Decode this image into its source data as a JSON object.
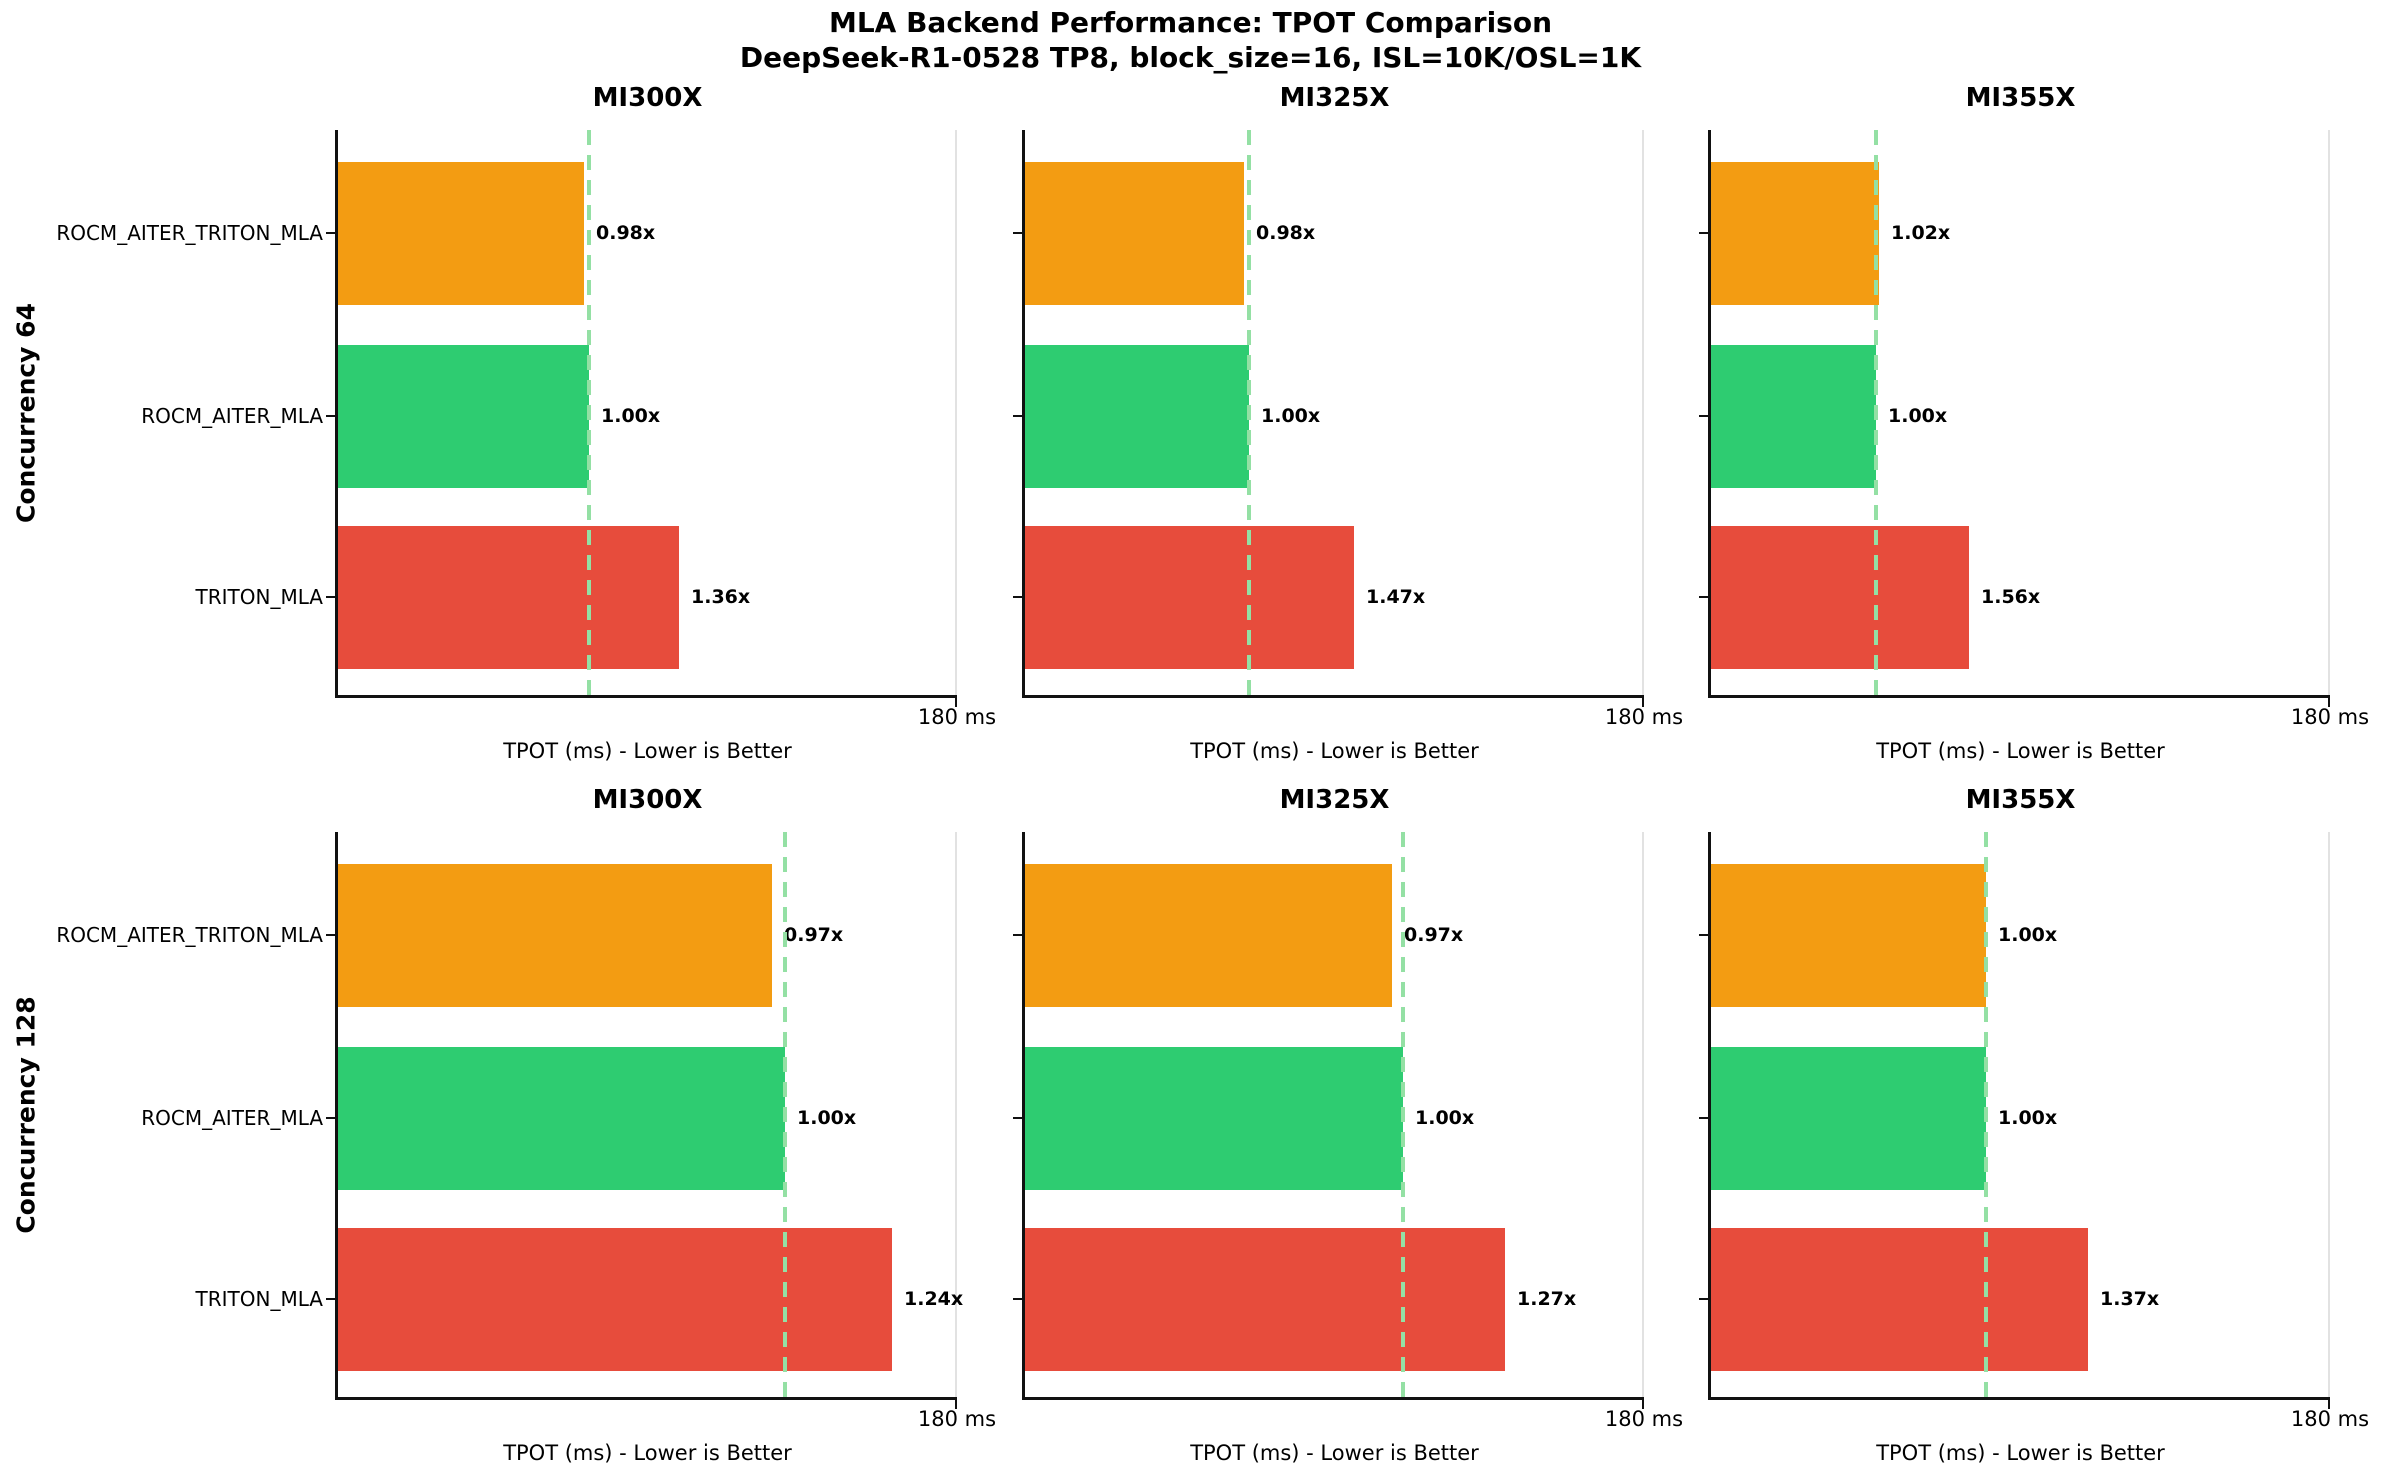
{
  "title": {
    "line1": "MLA Backend Performance: TPOT Comparison",
    "line2": "DeepSeek-R1-0528 TP8, block_size=16, ISL=10K/OSL=1K"
  },
  "backends": [
    "ROCM_AITER_TRITON_MLA",
    "ROCM_AITER_MLA",
    "TRITON_MLA"
  ],
  "axis": {
    "max_ms": 180,
    "tick_label": "180 ms",
    "xlabel": "TPOT (ms) - Lower is Better"
  },
  "colors": {
    "bars": [
      "#F39C12",
      "#2ECC71",
      "#E74C3C"
    ],
    "reference_line": "#94E0A4",
    "spine": "#111111"
  },
  "rows": [
    {
      "label": "Concurrency 64",
      "panels": [
        {
          "title": "MI300X",
          "baseline_ms_est": 73,
          "speedups": [
            0.98,
            1.0,
            1.36
          ],
          "labels": [
            "0.98x",
            "1.00x",
            "1.36x"
          ]
        },
        {
          "title": "MI325X",
          "baseline_ms_est": 65,
          "speedups": [
            0.98,
            1.0,
            1.47
          ],
          "labels": [
            "0.98x",
            "1.00x",
            "1.47x"
          ]
        },
        {
          "title": "MI355X",
          "baseline_ms_est": 48,
          "speedups": [
            1.02,
            1.0,
            1.56
          ],
          "labels": [
            "1.02x",
            "1.00x",
            "1.56x"
          ]
        }
      ]
    },
    {
      "label": "Concurrency 128",
      "panels": [
        {
          "title": "MI300X",
          "baseline_ms_est": 130,
          "speedups": [
            0.97,
            1.0,
            1.24
          ],
          "labels": [
            "0.97x",
            "1.00x",
            "1.24x"
          ]
        },
        {
          "title": "MI325X",
          "baseline_ms_est": 110,
          "speedups": [
            0.97,
            1.0,
            1.27
          ],
          "labels": [
            "0.97x",
            "1.00x",
            "1.27x"
          ]
        },
        {
          "title": "MI355X",
          "baseline_ms_est": 80,
          "speedups": [
            1.0,
            1.0,
            1.37
          ],
          "labels": [
            "1.00x",
            "1.00x",
            "1.37x"
          ]
        }
      ]
    }
  ],
  "chart_data": [
    {
      "type": "bar",
      "orientation": "horizontal",
      "title": "MI300X",
      "group": "Concurrency 64",
      "categories": [
        "ROCM_AITER_TRITON_MLA",
        "ROCM_AITER_MLA",
        "TRITON_MLA"
      ],
      "values_ms_est": [
        71.5,
        73.0,
        99.3
      ],
      "bar_labels": [
        "0.98x",
        "1.00x",
        "1.36x"
      ],
      "reference_line_ms_est": 73,
      "xlabel": "TPOT (ms) - Lower is Better",
      "xlim": [
        0,
        180
      ],
      "x_tick_labels": [
        "180 ms"
      ],
      "grid": false,
      "legend": "none",
      "bar_colors": [
        "#F39C12",
        "#2ECC71",
        "#E74C3C"
      ]
    },
    {
      "type": "bar",
      "orientation": "horizontal",
      "title": "MI325X",
      "group": "Concurrency 64",
      "categories": [
        "ROCM_AITER_TRITON_MLA",
        "ROCM_AITER_MLA",
        "TRITON_MLA"
      ],
      "values_ms_est": [
        63.7,
        65.0,
        95.6
      ],
      "bar_labels": [
        "0.98x",
        "1.00x",
        "1.47x"
      ],
      "reference_line_ms_est": 65,
      "xlabel": "TPOT (ms) - Lower is Better",
      "xlim": [
        0,
        180
      ],
      "x_tick_labels": [
        "180 ms"
      ],
      "grid": false,
      "legend": "none",
      "bar_colors": [
        "#F39C12",
        "#2ECC71",
        "#E74C3C"
      ]
    },
    {
      "type": "bar",
      "orientation": "horizontal",
      "title": "MI355X",
      "group": "Concurrency 64",
      "categories": [
        "ROCM_AITER_TRITON_MLA",
        "ROCM_AITER_MLA",
        "TRITON_MLA"
      ],
      "values_ms_est": [
        49.0,
        48.0,
        74.9
      ],
      "bar_labels": [
        "1.02x",
        "1.00x",
        "1.56x"
      ],
      "reference_line_ms_est": 48,
      "xlabel": "TPOT (ms) - Lower is Better",
      "xlim": [
        0,
        180
      ],
      "x_tick_labels": [
        "180 ms"
      ],
      "grid": false,
      "legend": "none",
      "bar_colors": [
        "#F39C12",
        "#2ECC71",
        "#E74C3C"
      ]
    },
    {
      "type": "bar",
      "orientation": "horizontal",
      "title": "MI300X",
      "group": "Concurrency 128",
      "categories": [
        "ROCM_AITER_TRITON_MLA",
        "ROCM_AITER_MLA",
        "TRITON_MLA"
      ],
      "values_ms_est": [
        126.1,
        130.0,
        161.2
      ],
      "bar_labels": [
        "0.97x",
        "1.00x",
        "1.24x"
      ],
      "reference_line_ms_est": 130,
      "xlabel": "TPOT (ms) - Lower is Better",
      "xlim": [
        0,
        180
      ],
      "x_tick_labels": [
        "180 ms"
      ],
      "grid": false,
      "legend": "none",
      "bar_colors": [
        "#F39C12",
        "#2ECC71",
        "#E74C3C"
      ]
    },
    {
      "type": "bar",
      "orientation": "horizontal",
      "title": "MI325X",
      "group": "Concurrency 128",
      "categories": [
        "ROCM_AITER_TRITON_MLA",
        "ROCM_AITER_MLA",
        "TRITON_MLA"
      ],
      "values_ms_est": [
        106.7,
        110.0,
        139.7
      ],
      "bar_labels": [
        "0.97x",
        "1.00x",
        "1.27x"
      ],
      "reference_line_ms_est": 110,
      "xlabel": "TPOT (ms) - Lower is Better",
      "xlim": [
        0,
        180
      ],
      "x_tick_labels": [
        "180 ms"
      ],
      "grid": false,
      "legend": "none",
      "bar_colors": [
        "#F39C12",
        "#2ECC71",
        "#E74C3C"
      ]
    },
    {
      "type": "bar",
      "orientation": "horizontal",
      "title": "MI355X",
      "group": "Concurrency 128",
      "categories": [
        "ROCM_AITER_TRITON_MLA",
        "ROCM_AITER_MLA",
        "TRITON_MLA"
      ],
      "values_ms_est": [
        80.0,
        80.0,
        109.6
      ],
      "bar_labels": [
        "1.00x",
        "1.00x",
        "1.37x"
      ],
      "reference_line_ms_est": 80,
      "xlabel": "TPOT (ms) - Lower is Better",
      "xlim": [
        0,
        180
      ],
      "x_tick_labels": [
        "180 ms"
      ],
      "grid": false,
      "legend": "none",
      "bar_colors": [
        "#F39C12",
        "#2ECC71",
        "#E74C3C"
      ]
    }
  ]
}
